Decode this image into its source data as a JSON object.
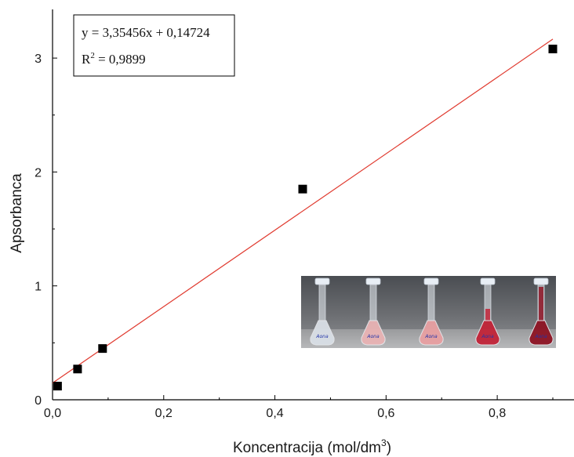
{
  "chart_data": {
    "type": "scatter",
    "title": "",
    "xlabel": "Koncentracija (mol/dm",
    "xlabel_superscript": "3",
    "xlabel_suffix": ")",
    "ylabel": "Apsorbanca",
    "xlim": [
      0.0,
      0.94
    ],
    "ylim": [
      0.0,
      3.4
    ],
    "grid": false,
    "x_ticks": [
      {
        "value": 0.0,
        "label": "0,0"
      },
      {
        "value": 0.2,
        "label": "0,2"
      },
      {
        "value": 0.4,
        "label": "0,4"
      },
      {
        "value": 0.6,
        "label": "0,6"
      },
      {
        "value": 0.8,
        "label": "0,8"
      }
    ],
    "y_ticks": [
      {
        "value": 0,
        "label": "0"
      },
      {
        "value": 1,
        "label": "1"
      },
      {
        "value": 2,
        "label": "2"
      },
      {
        "value": 3,
        "label": "3"
      }
    ],
    "series": [
      {
        "marker": "square",
        "color": "#000000",
        "points": [
          {
            "x": 0.009,
            "y": 0.12
          },
          {
            "x": 0.045,
            "y": 0.27
          },
          {
            "x": 0.09,
            "y": 0.45
          },
          {
            "x": 0.45,
            "y": 1.85
          },
          {
            "x": 0.9,
            "y": 3.08
          }
        ]
      }
    ],
    "fit_line": {
      "slope": 3.35456,
      "intercept": 0.14724,
      "x_range": [
        0.0,
        0.9
      ],
      "color": "#e03a2f"
    },
    "annotation": {
      "equation": "y = 3,35456x + 0,14724",
      "r2_label": "R",
      "r2_superscript": "2",
      "r2_value": " = 0,9899",
      "placement": "top-left"
    },
    "inset_photo": {
      "description_icon": "volumetric-flasks-photo",
      "placement": "bottom-right",
      "flask_colors": [
        "#d9dfe6",
        "#e9b3b4",
        "#e8a0a2",
        "#c22438",
        "#8e1424"
      ],
      "flask_labels": [
        "Aona",
        "Aona",
        "Aona",
        "Aona",
        "Aona"
      ]
    }
  }
}
